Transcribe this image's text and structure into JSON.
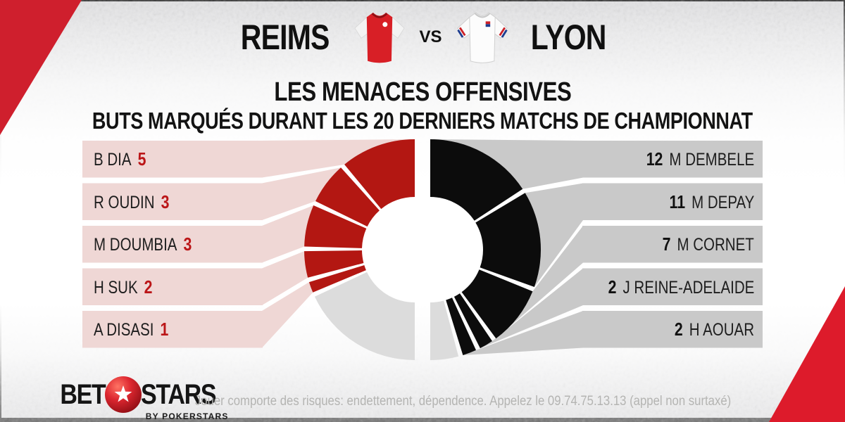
{
  "header": {
    "home_team": "REIMS",
    "vs": "VS",
    "away_team": "LYON"
  },
  "title": "LES MENACES OFFENSIVES",
  "subtitle": "BUTS MARQUÉS DURANT LES 20 DERNIERS MATCHS DE CHAMPIONNAT",
  "chart_data": {
    "type": "split-donut",
    "units": "goals scored in last 20 league matches",
    "left": {
      "team": "REIMS",
      "arc_span_degrees": 114,
      "segment_color": "#b31712",
      "band_color": "#efd7d5",
      "remainder_color": "#dcdcdc",
      "value_color": "#bb1618",
      "total_goals": 14,
      "players": [
        {
          "name": "B DIA",
          "goals": 5
        },
        {
          "name": "R OUDIN",
          "goals": 3
        },
        {
          "name": "M DOUMBIA",
          "goals": 3
        },
        {
          "name": "H SUK",
          "goals": 2
        },
        {
          "name": "A DISASI",
          "goals": 1
        }
      ]
    },
    "right": {
      "team": "LYON",
      "arc_span_degrees": 164,
      "segment_color": "#0c0c0c",
      "band_color": "#c9c9c9",
      "remainder_color": "#dcdcdc",
      "value_color": "#111111",
      "total_goals": 34,
      "players": [
        {
          "name": "M DEMBELE",
          "goals": 12
        },
        {
          "name": "M DEPAY",
          "goals": 11
        },
        {
          "name": "M CORNET",
          "goals": 7
        },
        {
          "name": "J REINE-ADELAIDE",
          "goals": 2
        },
        {
          "name": "H AOUAR",
          "goals": 2
        }
      ]
    }
  },
  "footer": {
    "logo": {
      "bet": "BET",
      "stars": "STARS",
      "byline": "BY POKERSTARS"
    },
    "disclaimer": "Jouer comporte des risques: endettement, dépendence. Appelez le 09.74.75.13.13 (appel non surtaxé)"
  },
  "colors": {
    "accent_red": "#cf1f2d",
    "donut_red": "#b31712",
    "donut_black": "#0c0c0c",
    "pink_band": "#efd7d5",
    "gray_band": "#c9c9c9"
  }
}
